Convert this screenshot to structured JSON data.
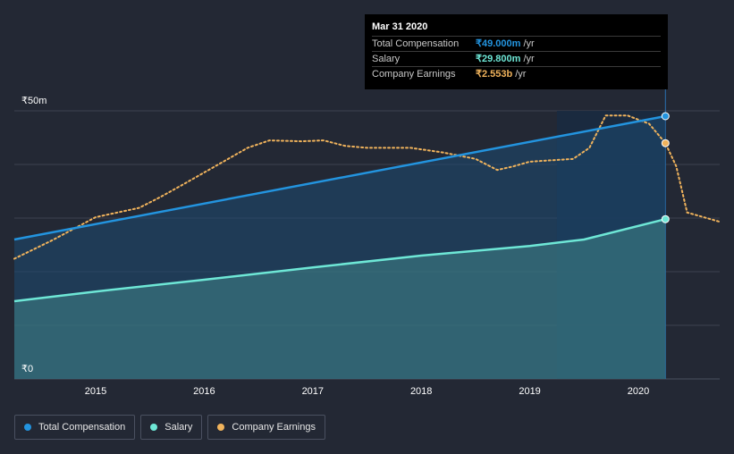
{
  "colors": {
    "background": "#232834",
    "total": "#2394df",
    "salary": "#6ee7d6",
    "earnings": "#f0b35c",
    "grid": "#3c4250"
  },
  "tooltip": {
    "date": "Mar 31 2020",
    "rows": [
      {
        "label": "Total Compensation",
        "value": "₹49.000m",
        "unit": "/yr"
      },
      {
        "label": "Salary",
        "value": "₹29.800m",
        "unit": "/yr"
      },
      {
        "label": "Company Earnings",
        "value": "₹2.553b",
        "unit": "/yr"
      }
    ]
  },
  "legend": [
    {
      "label": "Total Compensation"
    },
    {
      "label": "Salary"
    },
    {
      "label": "Company Earnings"
    }
  ],
  "chart_data": {
    "type": "area",
    "title": "",
    "y_labels": {
      "top": "₹50m",
      "bottom": "₹0"
    },
    "x_ticks": [
      "2015",
      "2016",
      "2017",
      "2018",
      "2019",
      "2020"
    ],
    "x_tick_values": [
      2015,
      2016,
      2017,
      2018,
      2019,
      2020
    ],
    "xlim": [
      2014.25,
      2020.75
    ],
    "ylim": [
      0,
      50
    ],
    "highlight_start": 2019.25,
    "highlight_end": 2020.25,
    "series": [
      {
        "name": "Total Compensation",
        "unit": "₹m",
        "x": [
          2014.25,
          2020.25
        ],
        "values": [
          26,
          49
        ]
      },
      {
        "name": "Salary",
        "unit": "₹m",
        "x": [
          2014.25,
          2015.0,
          2016.0,
          2017.0,
          2018.0,
          2019.0,
          2019.5,
          2020.25
        ],
        "values": [
          14.5,
          16.3,
          18.5,
          20.8,
          23.0,
          24.8,
          26.0,
          29.8
        ]
      },
      {
        "name": "Company Earnings",
        "unit": "₹b",
        "scale_max": 2.9,
        "x": [
          2014.25,
          2014.6,
          2015.0,
          2015.4,
          2015.6,
          2015.8,
          2016.1,
          2016.4,
          2016.6,
          2016.9,
          2017.1,
          2017.3,
          2017.5,
          2017.9,
          2018.2,
          2018.5,
          2018.7,
          2018.85,
          2019.0,
          2019.4,
          2019.55,
          2019.7,
          2019.9,
          2020.1,
          2020.25,
          2020.35,
          2020.45,
          2020.75
        ],
        "values": [
          1.3,
          1.5,
          1.75,
          1.85,
          1.97,
          2.1,
          2.3,
          2.5,
          2.58,
          2.57,
          2.58,
          2.52,
          2.5,
          2.5,
          2.45,
          2.38,
          2.26,
          2.3,
          2.35,
          2.38,
          2.5,
          2.85,
          2.85,
          2.76,
          2.55,
          2.3,
          1.8,
          1.7
        ]
      }
    ]
  }
}
